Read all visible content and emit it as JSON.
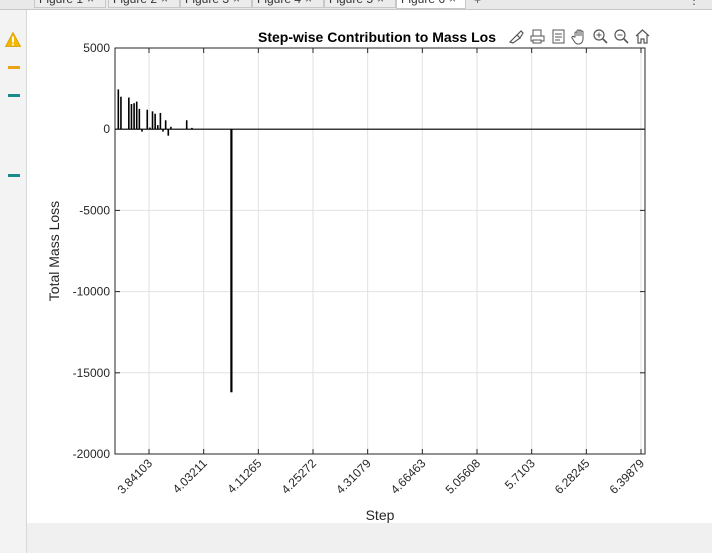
{
  "window": {
    "tabs": [
      {
        "label": "Figure 1",
        "active": false
      },
      {
        "label": "Figure 2",
        "active": false
      },
      {
        "label": "Figure 3",
        "active": false
      },
      {
        "label": "Figure 4",
        "active": false
      },
      {
        "label": "Figure 5",
        "active": false
      },
      {
        "label": "Figure 6",
        "active": true
      }
    ],
    "close_glyph": "×",
    "add_glyph": "+",
    "menu_glyph": "⋮"
  },
  "gutter": {
    "warning_icon": "warning-icon",
    "marks": [
      {
        "color": "#e8a317"
      },
      {
        "color": "#1a8a8a"
      },
      {
        "color": "#1a8a8a"
      }
    ]
  },
  "toolbar": {
    "icons": [
      "brush-icon",
      "print-icon",
      "data-tips-icon",
      "pan-icon",
      "zoom-in-icon",
      "zoom-out-icon",
      "home-icon"
    ]
  },
  "chart_data": {
    "type": "bar",
    "title": "Step-wise Contribution to Mass Los",
    "xlabel": "Step",
    "ylabel": "Total Mass Loss",
    "ylim": [
      -20000,
      5000
    ],
    "yticks": [
      5000,
      0,
      -5000,
      -10000,
      -15000,
      -20000
    ],
    "xticks": [
      "3.84103",
      "4.03211",
      "4.11265",
      "4.25272",
      "4.31079",
      "4.66463",
      "5.05608",
      "5.7103",
      "6.28245",
      "6.39879"
    ],
    "grid": true,
    "bar_color": "#000000",
    "categories_count": 200,
    "bars": [
      {
        "i": 0,
        "value": 2450
      },
      {
        "i": 1,
        "value": 2000
      },
      {
        "i": 4,
        "value": 1950
      },
      {
        "i": 5,
        "value": 1550
      },
      {
        "i": 6,
        "value": 1600
      },
      {
        "i": 7,
        "value": 1700
      },
      {
        "i": 8,
        "value": 1250
      },
      {
        "i": 9,
        "value": -150
      },
      {
        "i": 11,
        "value": 1200
      },
      {
        "i": 12,
        "value": 100
      },
      {
        "i": 13,
        "value": 1100
      },
      {
        "i": 14,
        "value": 950
      },
      {
        "i": 15,
        "value": 250
      },
      {
        "i": 16,
        "value": 1000
      },
      {
        "i": 17,
        "value": -150
      },
      {
        "i": 18,
        "value": 550
      },
      {
        "i": 19,
        "value": -400
      },
      {
        "i": 20,
        "value": 150
      },
      {
        "i": 26,
        "value": 550
      },
      {
        "i": 28,
        "value": 80
      },
      {
        "i": 43,
        "value": -16200
      }
    ]
  }
}
